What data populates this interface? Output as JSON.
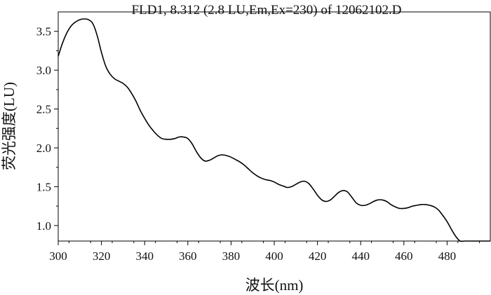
{
  "chart_data": {
    "type": "line",
    "title": "FLD1, 8.312 (2.8 LU,Em,Ex=230) of 12062102.D",
    "xlabel": "波长(nm)",
    "ylabel": "荧光强度(LU)",
    "xlim": [
      300,
      500
    ],
    "ylim": [
      0.8,
      3.75
    ],
    "x_ticks": [
      300,
      320,
      340,
      360,
      380,
      400,
      420,
      440,
      460,
      480
    ],
    "y_ticks": [
      1.0,
      1.5,
      2.0,
      2.5,
      3.0,
      3.5
    ],
    "x_tick_labels": [
      "300",
      "320",
      "340",
      "360",
      "380",
      "400",
      "420",
      "440",
      "460",
      "480"
    ],
    "y_tick_labels": [
      "1.0",
      "1.5",
      "2.0",
      "2.5",
      "3.0",
      "3.5"
    ],
    "grid": false,
    "line_color": "#000000",
    "series": [
      {
        "x": [
          300,
          302,
          304,
          306,
          308,
          310,
          312,
          314,
          316,
          318,
          320,
          322,
          324,
          326,
          328,
          330,
          332,
          334,
          336,
          338,
          340,
          342,
          344,
          346,
          348,
          350,
          352,
          354,
          356,
          358,
          360,
          362,
          364,
          366,
          368,
          370,
          372,
          374,
          376,
          378,
          380,
          382,
          384,
          386,
          388,
          390,
          392,
          394,
          396,
          398,
          400,
          402,
          404,
          406,
          408,
          410,
          412,
          414,
          416,
          418,
          420,
          422,
          424,
          426,
          428,
          430,
          432,
          434,
          436,
          438,
          440,
          442,
          444,
          446,
          448,
          450,
          452,
          454,
          456,
          458,
          460,
          462,
          464,
          466,
          468,
          470,
          472,
          474,
          476,
          478,
          480,
          482,
          484,
          486,
          488,
          490,
          492,
          494,
          496,
          498,
          500
        ],
        "y": [
          3.18,
          3.35,
          3.48,
          3.57,
          3.62,
          3.65,
          3.66,
          3.65,
          3.6,
          3.45,
          3.23,
          3.05,
          2.95,
          2.89,
          2.86,
          2.83,
          2.78,
          2.7,
          2.6,
          2.48,
          2.38,
          2.29,
          2.22,
          2.16,
          2.12,
          2.11,
          2.11,
          2.12,
          2.14,
          2.14,
          2.12,
          2.05,
          1.95,
          1.87,
          1.83,
          1.84,
          1.87,
          1.9,
          1.91,
          1.9,
          1.88,
          1.85,
          1.82,
          1.78,
          1.73,
          1.68,
          1.64,
          1.61,
          1.59,
          1.58,
          1.56,
          1.53,
          1.51,
          1.49,
          1.5,
          1.53,
          1.56,
          1.57,
          1.54,
          1.47,
          1.39,
          1.33,
          1.31,
          1.33,
          1.38,
          1.43,
          1.45,
          1.43,
          1.36,
          1.29,
          1.26,
          1.26,
          1.28,
          1.31,
          1.33,
          1.33,
          1.31,
          1.27,
          1.24,
          1.22,
          1.22,
          1.23,
          1.25,
          1.26,
          1.27,
          1.27,
          1.26,
          1.24,
          1.2,
          1.13,
          1.05,
          0.95,
          0.86,
          0.8,
          0.8,
          0.8,
          0.8,
          0.8,
          0.8,
          0.8,
          0.8
        ]
      }
    ]
  }
}
